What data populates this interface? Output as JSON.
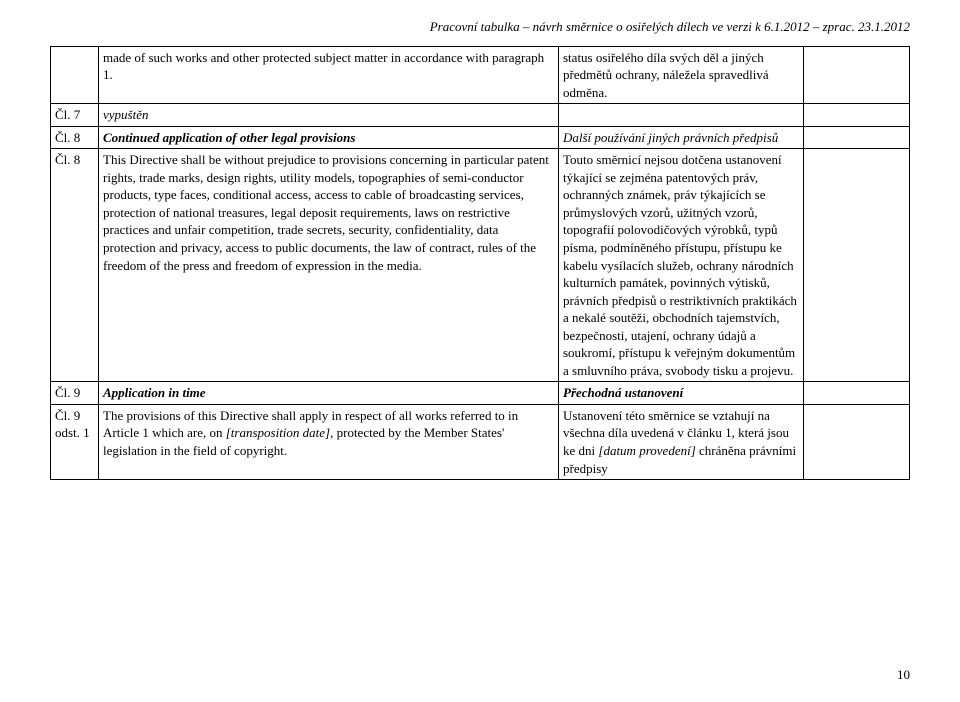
{
  "header": "Pracovní tabulka – návrh směrnice o osiřelých dílech ve verzi  k 6.1.2012 – zprac. 23.1.2012",
  "page_number": "10",
  "rows": [
    {
      "c1": "",
      "c2": {
        "text": "made of such works and other protected subject matter in accordance with paragraph 1.",
        "style": "plain"
      },
      "c3": {
        "text": "status osiřelého díla svých děl a jiných předmětů ochrany, náležela spravedlivá odměna.",
        "style": "plain"
      },
      "c4": ""
    },
    {
      "c1": "Čl. 7",
      "c2": {
        "text": "vypuštěn",
        "style": "italic"
      },
      "c3": {
        "text": "",
        "style": "plain"
      },
      "c4": ""
    },
    {
      "c1": "Čl. 8",
      "c2": {
        "text": "Continued application of other legal provisions",
        "style": "bold-italic"
      },
      "c3": {
        "text": "Další používání jiných právních předpisů",
        "style": "italic"
      },
      "c4": ""
    },
    {
      "c1": "Čl. 8",
      "c2": {
        "text": "This Directive shall be without prejudice to provisions concerning in particular patent rights, trade marks, design rights, utility models, topographies of semi-conductor products, type faces, conditional access, access to cable of broadcasting services, protection of national treasures, legal deposit requirements, laws on restrictive practices and unfair competition, trade secrets, security, confidentiality, data protection and privacy, access to public documents, the law of contract, rules of the freedom of the press and freedom of expression in the media.",
        "style": "plain"
      },
      "c3": {
        "text": "Touto směrnicí nejsou dotčena ustanovení týkající se zejména patentových práv, ochranných známek, práv týkajících se průmyslových vzorů, užitných vzorů, topografií polovodičových výrobků, typů písma, podmíněného přístupu, přístupu ke kabelu vysílacích služeb, ochrany národních kulturních památek, povinných výtisků, právních předpisů o restriktivních praktikách a nekalé soutěži, obchodních tajemstvích, bezpečnosti, utajení, ochrany údajů a soukromí, přístupu k veřejným dokumentům a smluvního práva, svobody tisku a projevu.",
        "style": "plain"
      },
      "c4": ""
    },
    {
      "c1": "Čl. 9",
      "c2": {
        "text": "Application in time",
        "style": "bold-italic"
      },
      "c3": {
        "text": "Přechodná ustanovení",
        "style": "bold-italic"
      },
      "c4": ""
    },
    {
      "c1": "Čl. 9 odst. 1",
      "c2_parts": [
        {
          "text": "The provisions of this Directive shall apply in respect of all works referred to in Article 1 which are, on ",
          "style": "plain"
        },
        {
          "text": "[transposition date]",
          "style": "italic"
        },
        {
          "text": ", protected by the Member States' legislation in the field of copyright.",
          "style": "plain"
        }
      ],
      "c3_parts": [
        {
          "text": "Ustanovení této směrnice se vztahují na všechna díla uvedená v článku 1, která jsou ke dni ",
          "style": "plain"
        },
        {
          "text": "[datum provedení]",
          "style": "italic"
        },
        {
          "text": " chráněna právními předpisy",
          "style": "plain"
        }
      ],
      "c4": ""
    }
  ]
}
